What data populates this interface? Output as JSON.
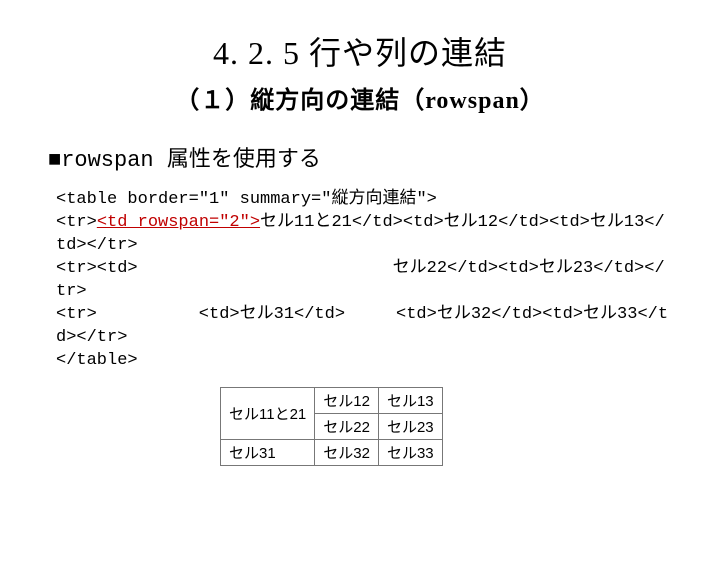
{
  "title": "4. 2. 5 行や列の連結",
  "subtitle": "（１）縦方向の連結（rowspan）",
  "section_head": "■rowspan 属性を使用する",
  "code": {
    "l1": "<table border=\"1\" summary=\"縦方向連結\">",
    "l2a": "<tr>",
    "l2b": "<td rowspan=\"2\">",
    "l2c": "セル11と21</td><td>セル12</td><td>セル13</td></tr>",
    "l3": "<tr><td>　　　　　　　　　　　　　　　セル22</td><td>セル23</td></tr>",
    "l4": "<tr>　　　　　　<td>セル31</td>　　　<td>セル32</td><td>セル33</td></tr>",
    "l5": "</table>"
  },
  "sample_table": {
    "merged_cell": "セル11と21",
    "r1c2": "セル12",
    "r1c3": "セル13",
    "r2c2": "セル22",
    "r2c3": "セル23",
    "r3c1": "セル31",
    "r3c2": "セル32",
    "r3c3": "セル33",
    "border_color": "#777777",
    "cell_padding": "2px 8px"
  },
  "colors": {
    "red": "#c00000",
    "text": "#000000",
    "background": "#ffffff"
  }
}
